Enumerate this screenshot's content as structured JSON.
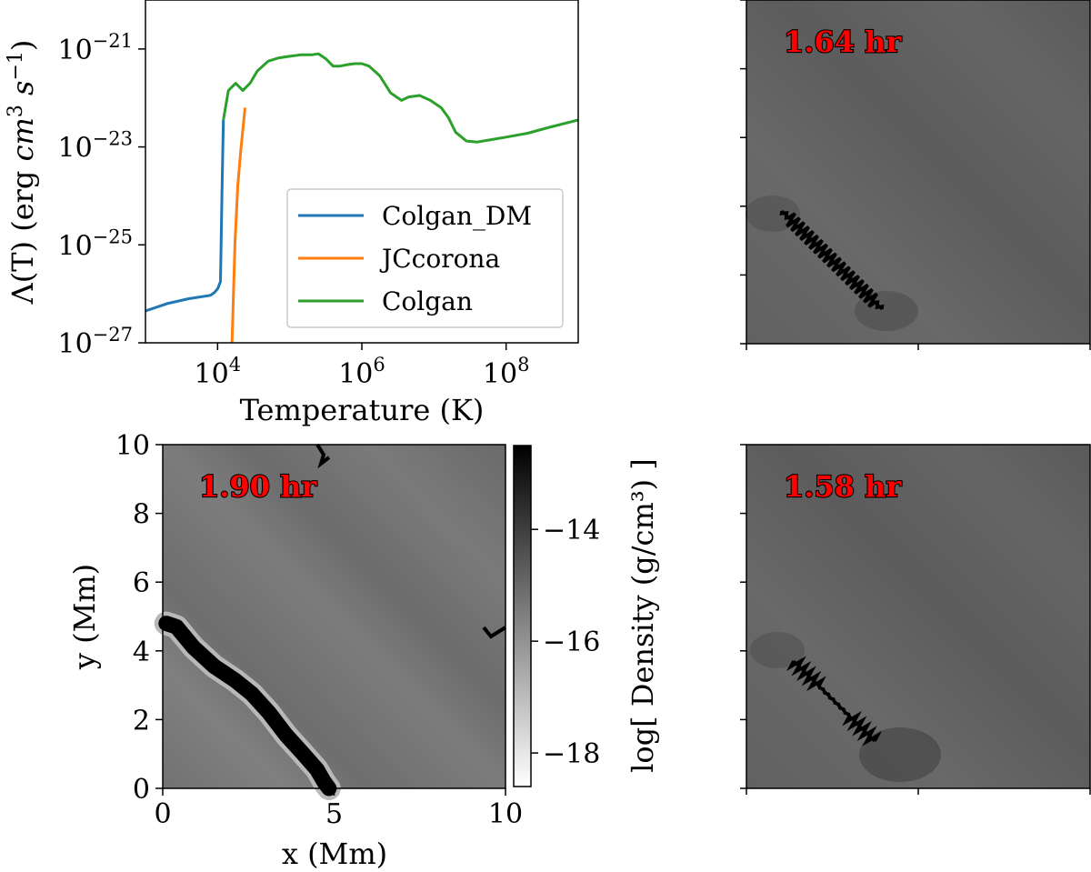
{
  "chart_data": [
    {
      "type": "line",
      "title": "",
      "xlabel": "Temperature (K)",
      "ylabel": "Λ(T) (erg cm³ s⁻¹)",
      "xscale": "log",
      "yscale": "log",
      "xlim": [
        1000,
        1000000000
      ],
      "ylim": [
        1e-27,
        1e-20
      ],
      "x_ticks": [
        {
          "value": 10000,
          "base": "10",
          "exp": "4"
        },
        {
          "value": 1000000,
          "base": "10",
          "exp": "6"
        },
        {
          "value": 100000000,
          "base": "10",
          "exp": "8"
        }
      ],
      "y_ticks": [
        {
          "value": 1e-27,
          "base": "10",
          "exp": "−27"
        },
        {
          "value": 1e-25,
          "base": "10",
          "exp": "−25"
        },
        {
          "value": 1e-23,
          "base": "10",
          "exp": "−23"
        },
        {
          "value": 1e-21,
          "base": "10",
          "exp": "−21"
        }
      ],
      "legend": {
        "position": "lower-right",
        "entries": [
          "Colgan_DM",
          "JCcorona",
          "Colgan"
        ]
      },
      "series": [
        {
          "name": "Colgan_DM",
          "color": "#1f77b4",
          "logx": [
            3.0,
            3.3,
            3.6,
            3.9,
            3.95,
            4.0,
            4.04,
            4.06,
            4.08
          ],
          "logy": [
            -26.35,
            -26.2,
            -26.1,
            -26.03,
            -25.98,
            -25.9,
            -25.75,
            -24.0,
            -22.45
          ]
        },
        {
          "name": "JCcorona",
          "color": "#ff7f0e",
          "logx": [
            4.2,
            4.22,
            4.24,
            4.28,
            4.32,
            4.38
          ],
          "logy": [
            -27.0,
            -26.0,
            -25.0,
            -23.8,
            -23.1,
            -22.2
          ]
        },
        {
          "name": "Colgan",
          "color": "#2ca02c",
          "logx": [
            4.08,
            4.15,
            4.25,
            4.35,
            4.45,
            4.55,
            4.7,
            4.85,
            5.0,
            5.15,
            5.3,
            5.4,
            5.5,
            5.6,
            5.7,
            5.8,
            5.9,
            6.0,
            6.1,
            6.25,
            6.4,
            6.55,
            6.65,
            6.8,
            6.95,
            7.1,
            7.2,
            7.3,
            7.45,
            7.6,
            7.8,
            8.0,
            8.3,
            8.6,
            9.0
          ],
          "logy": [
            -22.45,
            -21.85,
            -21.7,
            -21.85,
            -21.7,
            -21.45,
            -21.25,
            -21.18,
            -21.15,
            -21.12,
            -21.12,
            -21.1,
            -21.2,
            -21.35,
            -21.35,
            -21.32,
            -21.3,
            -21.3,
            -21.35,
            -21.55,
            -21.9,
            -22.05,
            -21.98,
            -21.95,
            -22.05,
            -22.2,
            -22.4,
            -22.7,
            -22.88,
            -22.9,
            -22.85,
            -22.8,
            -22.72,
            -22.6,
            -22.45
          ]
        }
      ]
    },
    {
      "type": "heatmap",
      "title": "",
      "annotation": "1.64 hr",
      "colormap": "gray_r",
      "axis_ticks_labeled": false
    },
    {
      "type": "heatmap",
      "title": "",
      "annotation": "1.90 hr",
      "xlabel": "x (Mm)",
      "ylabel": "y (Mm)",
      "xlim": [
        0,
        10
      ],
      "ylim": [
        0,
        10
      ],
      "x_ticks": [
        "0",
        "5",
        "10"
      ],
      "y_ticks": [
        "0",
        "2",
        "4",
        "6",
        "8",
        "10"
      ],
      "colormap": "gray_r",
      "colorbar": {
        "label": "log[ Density (g/cm³) ]",
        "range": [
          -18.6,
          -12.5
        ],
        "ticks": [
          "−14",
          "−16",
          "−18"
        ],
        "tick_values": [
          -14,
          -16,
          -18
        ]
      },
      "filament_path": [
        [
          0.1,
          4.8
        ],
        [
          0.4,
          4.7
        ],
        [
          0.9,
          4.1
        ],
        [
          1.5,
          3.55
        ],
        [
          2.1,
          3.15
        ],
        [
          2.6,
          2.75
        ],
        [
          3.1,
          2.2
        ],
        [
          3.6,
          1.55
        ],
        [
          4.1,
          1.0
        ],
        [
          4.5,
          0.55
        ],
        [
          4.7,
          0.2
        ],
        [
          4.85,
          0.0
        ]
      ]
    },
    {
      "type": "heatmap",
      "title": "",
      "annotation": "1.58 hr",
      "colormap": "gray_r",
      "axis_ticks_labeled": false
    }
  ]
}
